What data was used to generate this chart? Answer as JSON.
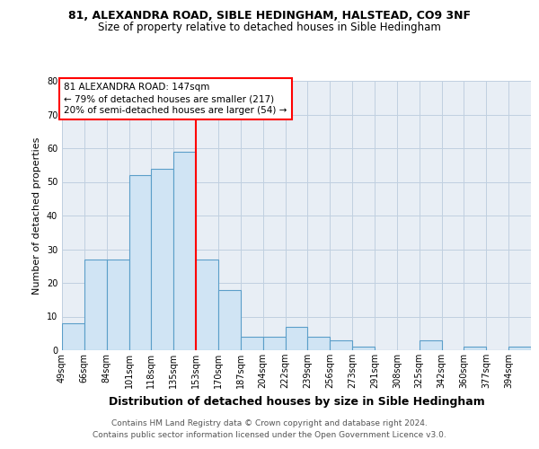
{
  "title1": "81, ALEXANDRA ROAD, SIBLE HEDINGHAM, HALSTEAD, CO9 3NF",
  "title2": "Size of property relative to detached houses in Sible Hedingham",
  "xlabel": "Distribution of detached houses by size in Sible Hedingham",
  "ylabel": "Number of detached properties",
  "bin_labels": [
    "49sqm",
    "66sqm",
    "84sqm",
    "101sqm",
    "118sqm",
    "135sqm",
    "153sqm",
    "170sqm",
    "187sqm",
    "204sqm",
    "222sqm",
    "239sqm",
    "256sqm",
    "273sqm",
    "291sqm",
    "308sqm",
    "325sqm",
    "342sqm",
    "360sqm",
    "377sqm",
    "394sqm"
  ],
  "bar_values": [
    8,
    27,
    27,
    52,
    54,
    59,
    27,
    18,
    4,
    4,
    7,
    4,
    3,
    1,
    0,
    0,
    3,
    0,
    1,
    0,
    1
  ],
  "bar_color": "#d0e4f4",
  "bar_edge_color": "#5b9ec9",
  "grid_color": "#c0d0e0",
  "bg_color": "#e8eef5",
  "red_line_index": 6,
  "annotation_line1": "81 ALEXANDRA ROAD: 147sqm",
  "annotation_line2": "← 79% of detached houses are smaller (217)",
  "annotation_line3": "20% of semi-detached houses are larger (54) →",
  "ylim_max": 80,
  "yticks": [
    0,
    10,
    20,
    30,
    40,
    50,
    60,
    70,
    80
  ],
  "footnote1": "Contains HM Land Registry data © Crown copyright and database right 2024.",
  "footnote2": "Contains public sector information licensed under the Open Government Licence v3.0.",
  "title1_fontsize": 9,
  "title2_fontsize": 8.5,
  "ylabel_fontsize": 8,
  "xlabel_fontsize": 9,
  "tick_fontsize": 7,
  "annot_fontsize": 7.5,
  "footnote_fontsize": 6.5
}
